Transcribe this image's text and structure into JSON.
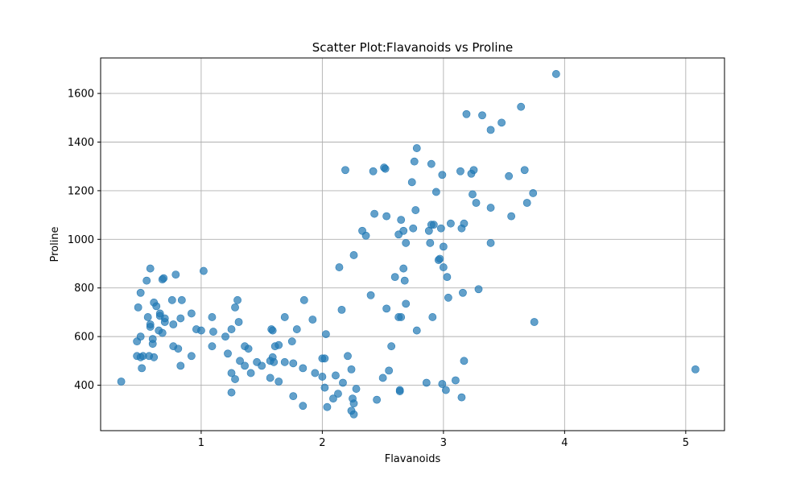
{
  "chart_data": {
    "type": "scatter",
    "title": "Scatter Plot:Flavanoids vs Proline",
    "xlabel": "Flavanoids",
    "ylabel": "Proline",
    "xlim": [
      0.17,
      5.32
    ],
    "ylim": [
      213,
      1746
    ],
    "xticks": [
      1,
      2,
      3,
      4,
      5
    ],
    "yticks": [
      400,
      600,
      800,
      1000,
      1200,
      1400,
      1600
    ],
    "grid": true,
    "marker_color": "#1f77b4",
    "marker_alpha": 0.7,
    "points": [
      [
        0.34,
        415
      ],
      [
        0.47,
        520
      ],
      [
        0.47,
        580
      ],
      [
        0.48,
        720
      ],
      [
        0.5,
        600
      ],
      [
        0.5,
        515
      ],
      [
        0.5,
        780
      ],
      [
        0.51,
        470
      ],
      [
        0.52,
        520
      ],
      [
        0.55,
        830
      ],
      [
        0.56,
        680
      ],
      [
        0.57,
        520
      ],
      [
        0.58,
        650
      ],
      [
        0.58,
        640
      ],
      [
        0.58,
        880
      ],
      [
        0.6,
        590
      ],
      [
        0.6,
        570
      ],
      [
        0.61,
        515
      ],
      [
        0.61,
        740
      ],
      [
        0.63,
        725
      ],
      [
        0.65,
        625
      ],
      [
        0.66,
        695
      ],
      [
        0.66,
        685
      ],
      [
        0.68,
        835
      ],
      [
        0.68,
        615
      ],
      [
        0.69,
        840
      ],
      [
        0.7,
        675
      ],
      [
        0.7,
        660
      ],
      [
        0.76,
        750
      ],
      [
        0.77,
        560
      ],
      [
        0.77,
        650
      ],
      [
        0.79,
        855
      ],
      [
        0.81,
        550
      ],
      [
        0.83,
        675
      ],
      [
        0.83,
        480
      ],
      [
        0.84,
        750
      ],
      [
        0.92,
        695
      ],
      [
        0.92,
        520
      ],
      [
        0.96,
        630
      ],
      [
        1.0,
        625
      ],
      [
        1.02,
        870
      ],
      [
        1.09,
        680
      ],
      [
        1.09,
        560
      ],
      [
        1.1,
        620
      ],
      [
        1.2,
        600
      ],
      [
        1.22,
        530
      ],
      [
        1.25,
        630
      ],
      [
        1.25,
        450
      ],
      [
        1.25,
        370
      ],
      [
        1.28,
        720
      ],
      [
        1.28,
        425
      ],
      [
        1.3,
        750
      ],
      [
        1.31,
        660
      ],
      [
        1.32,
        500
      ],
      [
        1.36,
        480
      ],
      [
        1.36,
        560
      ],
      [
        1.39,
        550
      ],
      [
        1.41,
        450
      ],
      [
        1.46,
        495
      ],
      [
        1.5,
        480
      ],
      [
        1.57,
        500
      ],
      [
        1.57,
        430
      ],
      [
        1.58,
        630
      ],
      [
        1.59,
        625
      ],
      [
        1.59,
        515
      ],
      [
        1.6,
        495
      ],
      [
        1.61,
        560
      ],
      [
        1.64,
        415
      ],
      [
        1.64,
        565
      ],
      [
        1.69,
        495
      ],
      [
        1.69,
        680
      ],
      [
        1.75,
        580
      ],
      [
        1.76,
        355
      ],
      [
        1.79,
        630
      ],
      [
        1.76,
        490
      ],
      [
        1.84,
        315
      ],
      [
        1.84,
        470
      ],
      [
        1.85,
        750
      ],
      [
        1.92,
        670
      ],
      [
        1.94,
        450
      ],
      [
        2.0,
        510
      ],
      [
        2.0,
        435
      ],
      [
        2.02,
        390
      ],
      [
        2.02,
        510
      ],
      [
        2.03,
        610
      ],
      [
        2.04,
        310
      ],
      [
        2.09,
        345
      ],
      [
        2.11,
        440
      ],
      [
        2.13,
        365
      ],
      [
        2.14,
        885
      ],
      [
        2.16,
        710
      ],
      [
        2.17,
        410
      ],
      [
        2.19,
        1285
      ],
      [
        2.21,
        520
      ],
      [
        2.24,
        465
      ],
      [
        2.24,
        295
      ],
      [
        2.25,
        345
      ],
      [
        2.26,
        280
      ],
      [
        2.26,
        325
      ],
      [
        2.26,
        935
      ],
      [
        2.28,
        385
      ],
      [
        2.33,
        1035
      ],
      [
        2.36,
        1015
      ],
      [
        2.4,
        770
      ],
      [
        2.42,
        1280
      ],
      [
        2.43,
        1105
      ],
      [
        2.45,
        340
      ],
      [
        2.5,
        430
      ],
      [
        2.51,
        1295
      ],
      [
        2.52,
        1290
      ],
      [
        2.53,
        715
      ],
      [
        2.53,
        1095
      ],
      [
        2.55,
        460
      ],
      [
        2.57,
        560
      ],
      [
        2.6,
        845
      ],
      [
        2.63,
        680
      ],
      [
        2.63,
        1020
      ],
      [
        2.64,
        375
      ],
      [
        2.64,
        380
      ],
      [
        2.65,
        1080
      ],
      [
        2.65,
        680
      ],
      [
        2.67,
        1035
      ],
      [
        2.67,
        880
      ],
      [
        2.68,
        830
      ],
      [
        2.69,
        985
      ],
      [
        2.69,
        735
      ],
      [
        2.74,
        1235
      ],
      [
        2.75,
        1045
      ],
      [
        2.76,
        1320
      ],
      [
        2.77,
        1120
      ],
      [
        2.78,
        625
      ],
      [
        2.78,
        1375
      ],
      [
        2.86,
        410
      ],
      [
        2.88,
        1035
      ],
      [
        2.89,
        985
      ],
      [
        2.9,
        1310
      ],
      [
        2.9,
        1060
      ],
      [
        2.91,
        680
      ],
      [
        2.92,
        1060
      ],
      [
        2.94,
        1195
      ],
      [
        2.96,
        915
      ],
      [
        2.97,
        920
      ],
      [
        2.98,
        1045
      ],
      [
        2.99,
        1265
      ],
      [
        2.99,
        405
      ],
      [
        3.0,
        885
      ],
      [
        3.0,
        970
      ],
      [
        3.02,
        380
      ],
      [
        3.03,
        845
      ],
      [
        3.04,
        760
      ],
      [
        3.06,
        1065
      ],
      [
        3.1,
        420
      ],
      [
        3.14,
        1280
      ],
      [
        3.15,
        1045
      ],
      [
        3.15,
        350
      ],
      [
        3.16,
        780
      ],
      [
        3.17,
        500
      ],
      [
        3.17,
        1065
      ],
      [
        3.19,
        1515
      ],
      [
        3.23,
        1270
      ],
      [
        3.24,
        1185
      ],
      [
        3.25,
        1285
      ],
      [
        3.27,
        1150
      ],
      [
        3.29,
        795
      ],
      [
        3.32,
        1510
      ],
      [
        3.39,
        1130
      ],
      [
        3.39,
        985
      ],
      [
        3.39,
        1450
      ],
      [
        3.48,
        1480
      ],
      [
        3.54,
        1260
      ],
      [
        3.56,
        1095
      ],
      [
        3.64,
        1545
      ],
      [
        3.67,
        1285
      ],
      [
        3.69,
        1150
      ],
      [
        3.74,
        1190
      ],
      [
        3.75,
        660
      ],
      [
        3.93,
        1680
      ],
      [
        5.08,
        465
      ]
    ]
  }
}
